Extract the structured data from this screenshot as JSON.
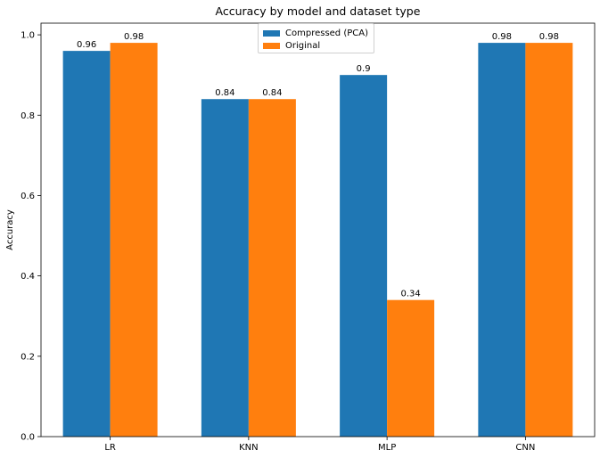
{
  "chart_data": {
    "type": "bar",
    "title": "Accuracy by model and dataset type",
    "xlabel": "",
    "ylabel": "Accuracy",
    "categories": [
      "LR",
      "KNN",
      "MLP",
      "CNN"
    ],
    "series": [
      {
        "name": "Compressed (PCA)",
        "color": "#1f77b4",
        "values": [
          0.96,
          0.84,
          0.9,
          0.98
        ]
      },
      {
        "name": "Original",
        "color": "#ff7f0e",
        "values": [
          0.98,
          0.84,
          0.34,
          0.98
        ]
      }
    ],
    "ylim": [
      0,
      1.029
    ],
    "yticks": [
      "0.0",
      "0.2",
      "0.4",
      "0.6",
      "0.8",
      "1.0"
    ],
    "ytick_values": [
      0,
      0.2,
      0.4,
      0.6,
      0.8,
      1.0
    ],
    "data_labels": [
      [
        "0.96",
        "0.84",
        "0.9",
        "0.98"
      ],
      [
        "0.98",
        "0.84",
        "0.34",
        "0.98"
      ]
    ],
    "grid": false,
    "legend_position": "top-center"
  }
}
